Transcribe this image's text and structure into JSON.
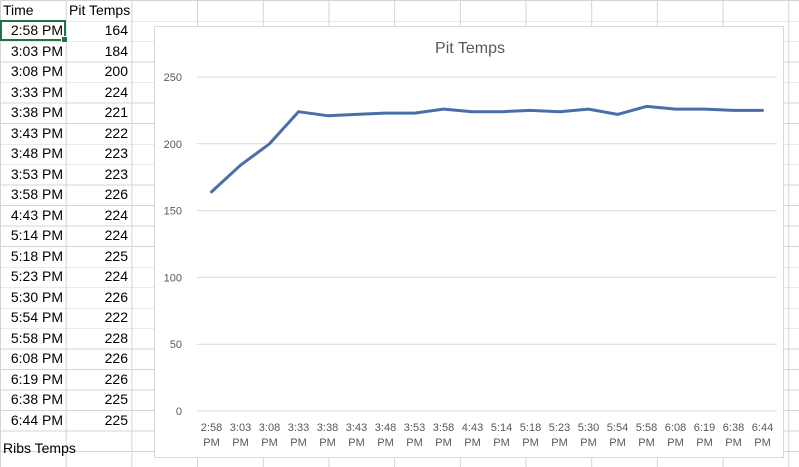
{
  "sheet": {
    "headers": {
      "time": "Time",
      "temp": "Pit Temps"
    },
    "rows": [
      {
        "time": "2:58 PM",
        "temp": "164"
      },
      {
        "time": "3:03 PM",
        "temp": "184"
      },
      {
        "time": "3:08 PM",
        "temp": "200"
      },
      {
        "time": "3:33 PM",
        "temp": "224"
      },
      {
        "time": "3:38 PM",
        "temp": "221"
      },
      {
        "time": "3:43 PM",
        "temp": "222"
      },
      {
        "time": "3:48 PM",
        "temp": "223"
      },
      {
        "time": "3:53 PM",
        "temp": "223"
      },
      {
        "time": "3:58 PM",
        "temp": "226"
      },
      {
        "time": "4:43 PM",
        "temp": "224"
      },
      {
        "time": "5:14 PM",
        "temp": "224"
      },
      {
        "time": "5:18 PM",
        "temp": "225"
      },
      {
        "time": "5:23 PM",
        "temp": "224"
      },
      {
        "time": "5:30 PM",
        "temp": "226"
      },
      {
        "time": "5:54 PM",
        "temp": "222"
      },
      {
        "time": "5:58 PM",
        "temp": "228"
      },
      {
        "time": "6:08 PM",
        "temp": "226"
      },
      {
        "time": "6:19 PM",
        "temp": "226"
      },
      {
        "time": "6:38 PM",
        "temp": "225"
      },
      {
        "time": "6:44 PM",
        "temp": "225"
      }
    ],
    "footer_label": "Ribs Temps"
  },
  "chart_data": {
    "type": "line",
    "title": "Pit Temps",
    "categories": [
      "2:58 PM",
      "3:03 PM",
      "3:08 PM",
      "3:33 PM",
      "3:38 PM",
      "3:43 PM",
      "3:48 PM",
      "3:53 PM",
      "3:58 PM",
      "4:43 PM",
      "5:14 PM",
      "5:18 PM",
      "5:23 PM",
      "5:30 PM",
      "5:54 PM",
      "5:58 PM",
      "6:08 PM",
      "6:19 PM",
      "6:38 PM",
      "6:44 PM"
    ],
    "series": [
      {
        "values": [
          164,
          184,
          200,
          224,
          221,
          222,
          223,
          223,
          226,
          224,
          224,
          225,
          224,
          226,
          222,
          228,
          226,
          226,
          225,
          225
        ],
        "color": "#4a6fa8"
      }
    ],
    "yticks": [
      0,
      50,
      100,
      150,
      200,
      250
    ],
    "ylim": [
      0,
      250
    ],
    "xlabel": "",
    "ylabel": "",
    "grid": true,
    "legend": "none"
  },
  "colors": {
    "selection": "#217346",
    "gridline": "#d9d9d9",
    "series": "#4a6fa8"
  }
}
